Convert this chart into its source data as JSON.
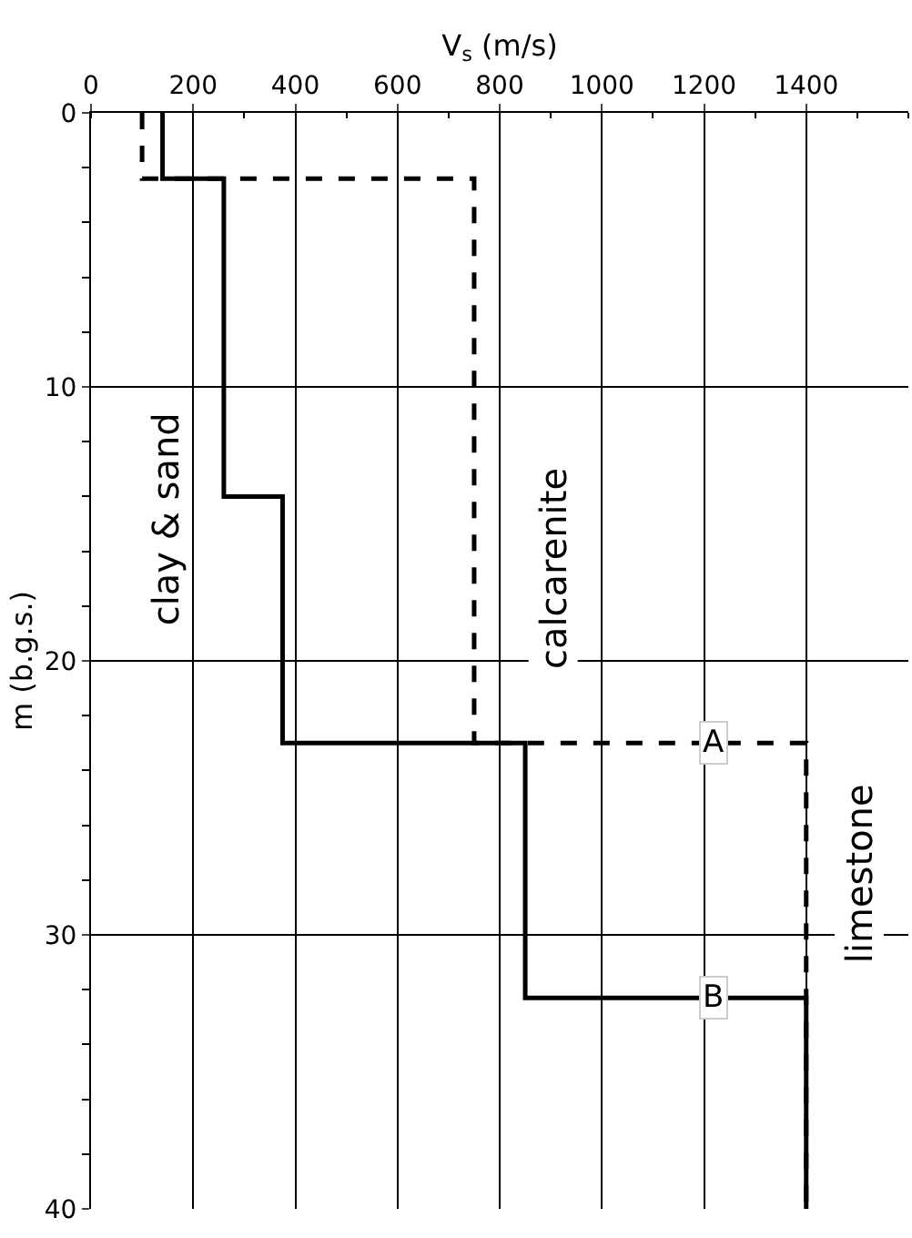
{
  "chart_data": {
    "type": "line",
    "xlabel": "V$_{s}$ (m/s)",
    "ylabel": "m (b.g.s.)",
    "xlim": [
      0,
      1600
    ],
    "xticks": [
      0,
      200,
      400,
      600,
      800,
      1000,
      1200,
      1400
    ],
    "ylim": [
      40,
      0
    ],
    "yticks": [
      0,
      10,
      20,
      30,
      40
    ],
    "grid": true,
    "marker": "none",
    "series": [
      {
        "color": "#000000",
        "line_style": "solid",
        "x": [
          140,
          140,
          260,
          260,
          375,
          375,
          850,
          850,
          1400,
          1400
        ],
        "values": [
          0,
          2.4,
          2.4,
          14,
          14,
          23,
          23,
          32.3,
          32.3,
          40
        ]
      },
      {
        "color": "#000000",
        "line_style": "dashed",
        "x": [
          100,
          100,
          750,
          750,
          1400,
          1400
        ],
        "values": [
          0,
          2.4,
          2.4,
          23,
          23,
          40
        ]
      }
    ],
    "annotations": [
      {
        "text": "A",
        "x": 1220,
        "y": 23
      },
      {
        "text": "B",
        "x": 1220,
        "y": 32.3
      },
      "clay & sand",
      "calcarenite",
      "limestone"
    ]
  }
}
